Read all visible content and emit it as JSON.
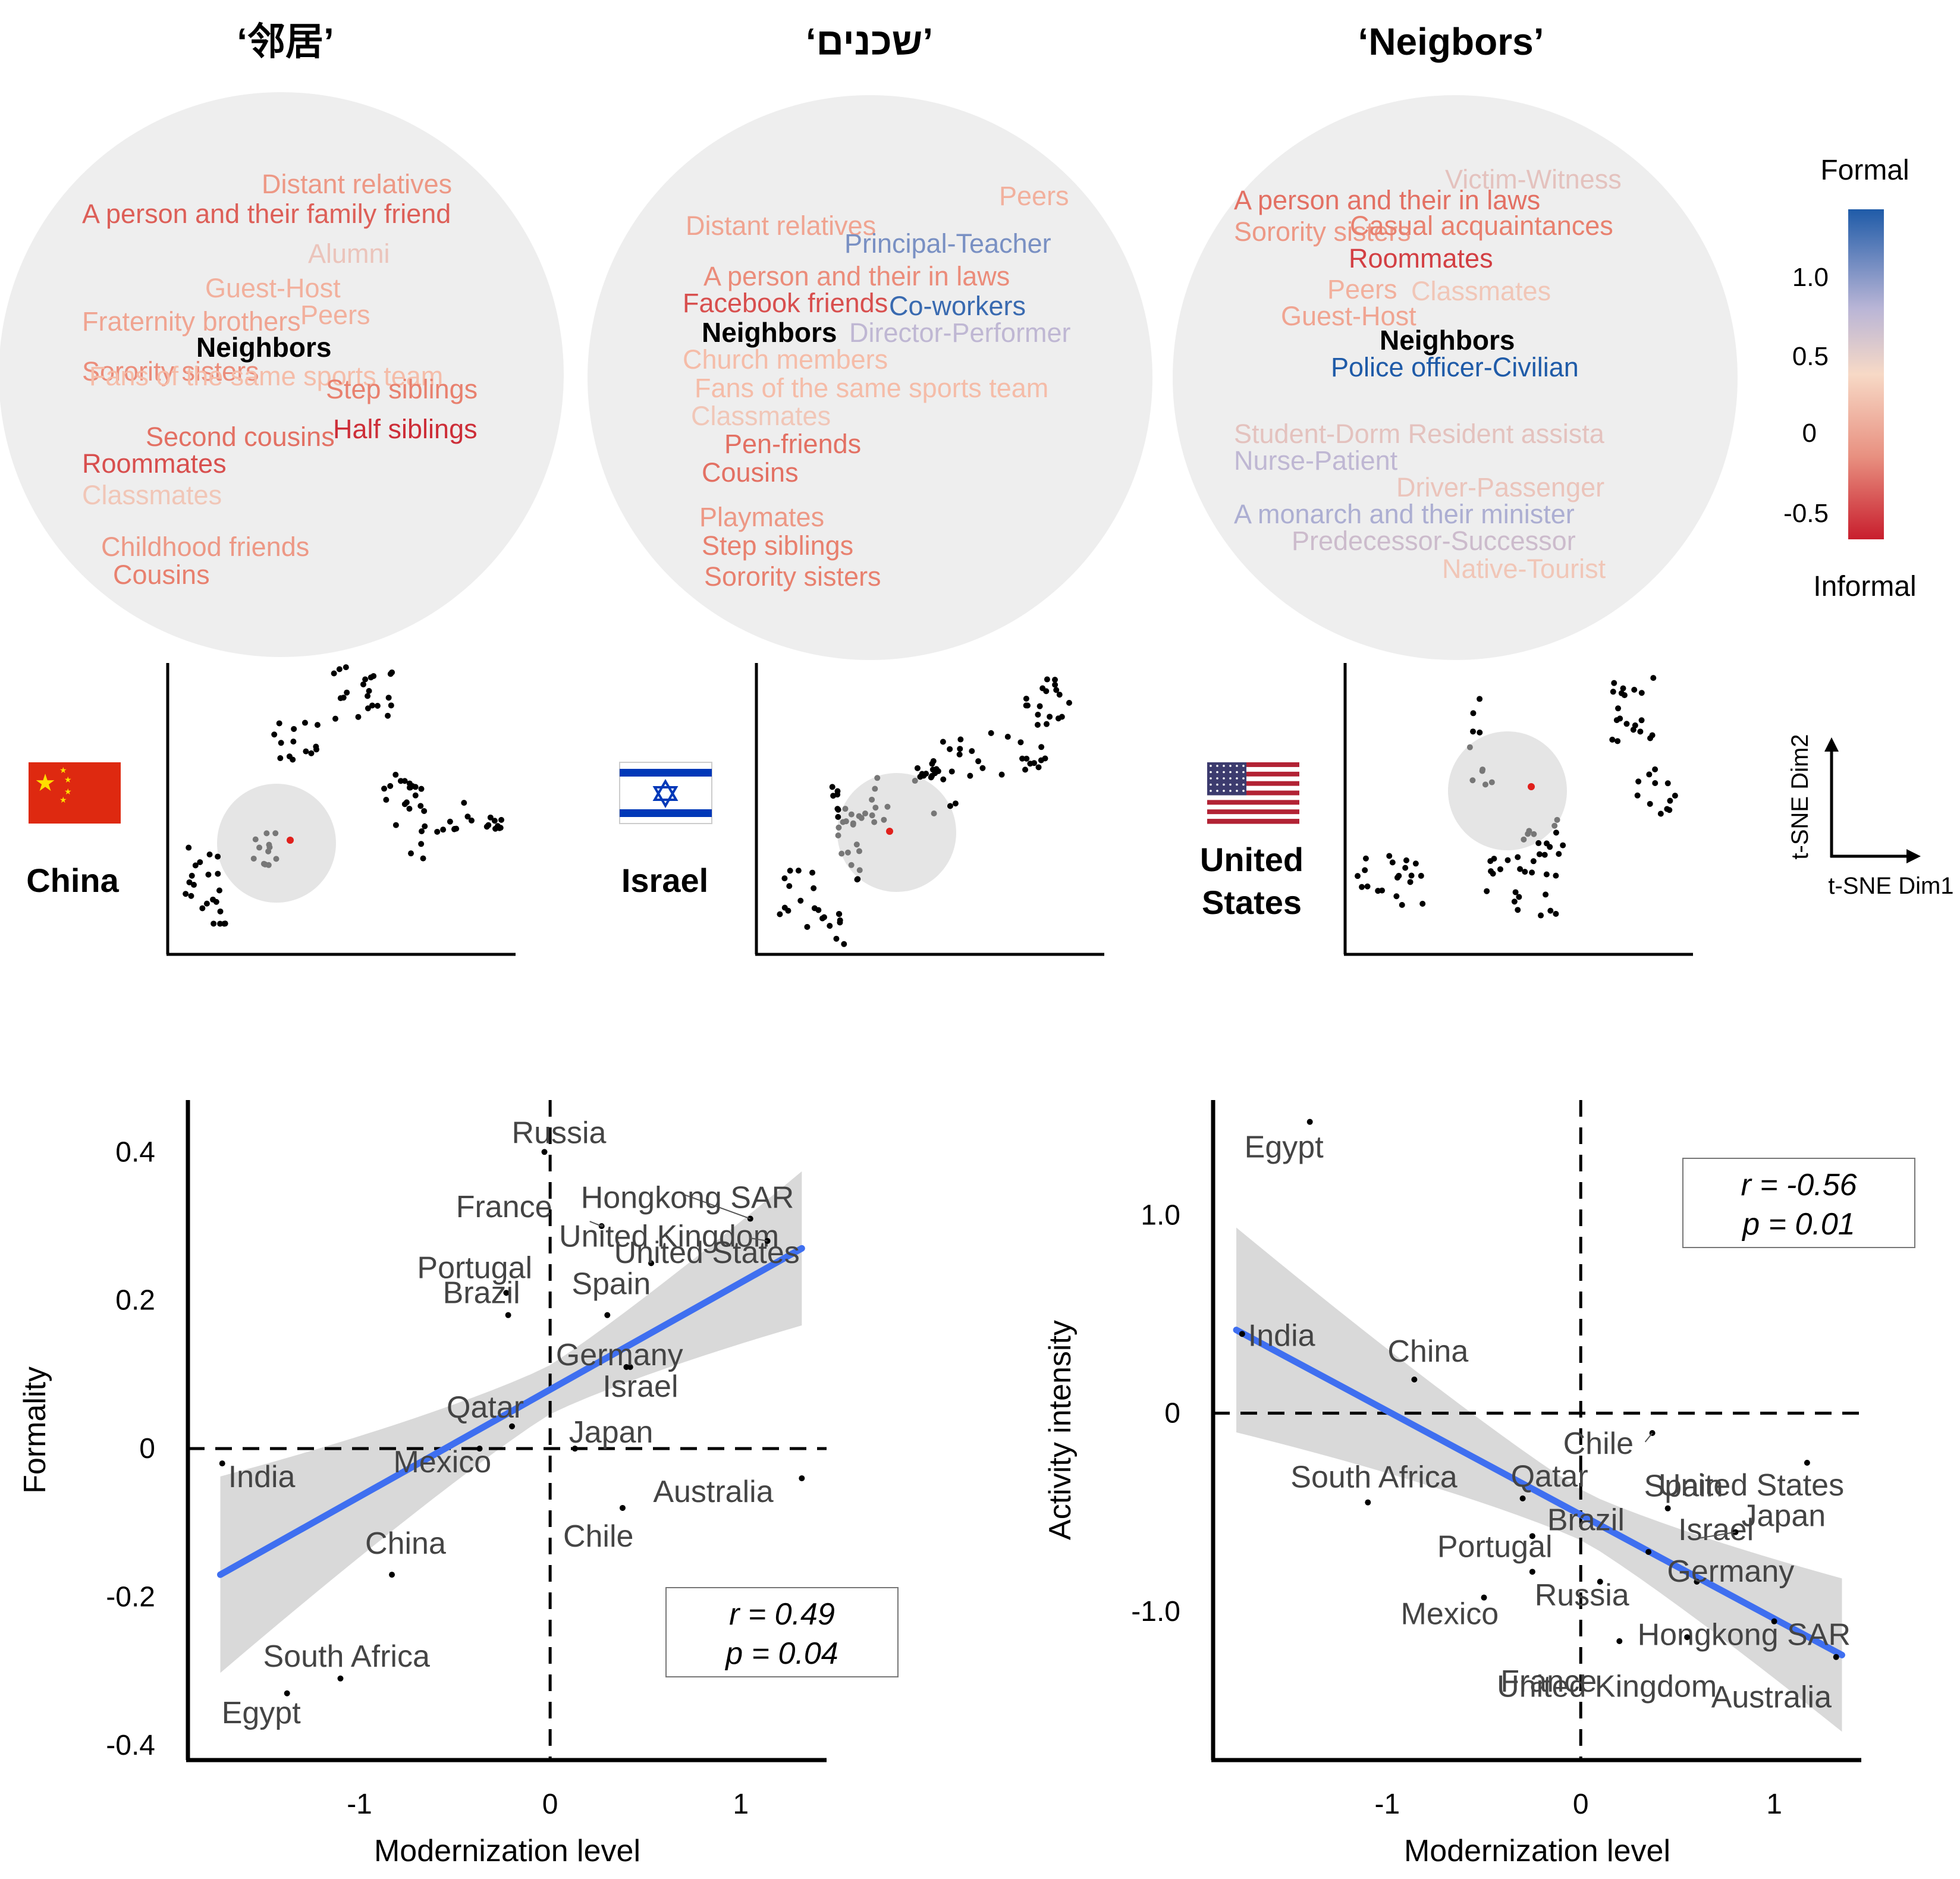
{
  "titles": [
    "‘邻居’",
    "‘שכנים’",
    "‘Neigbors’"
  ],
  "colors": {
    "formal": "#1f5ba8",
    "informal": "#c81e2d",
    "fit_line": "#3f6ff0",
    "band": "#d9d9d9",
    "circle": "#eeeeee"
  },
  "clouds": [
    {
      "center": "Neighbors",
      "items": [
        {
          "text": "Distant relatives",
          "formality": -0.2
        },
        {
          "text": "A person and their family friend",
          "formality": -0.4
        },
        {
          "text": "Alumni",
          "formality": 0.1
        },
        {
          "text": "Guest-Host",
          "formality": -0.1
        },
        {
          "text": "Fraternity brothers",
          "formality": -0.15
        },
        {
          "text": "Peers",
          "formality": -0.1
        },
        {
          "text": "Sorority sisters",
          "formality": -0.25
        },
        {
          "text": "Fans of the same sports team",
          "formality": -0.05
        },
        {
          "text": "Step siblings",
          "formality": -0.3
        },
        {
          "text": "Second cousins",
          "formality": -0.35
        },
        {
          "text": "Half siblings",
          "formality": -0.55
        },
        {
          "text": "Roommates",
          "formality": -0.45
        },
        {
          "text": "Classmates",
          "formality": 0.05
        },
        {
          "text": "Childhood friends",
          "formality": -0.2
        },
        {
          "text": "Cousins",
          "formality": -0.3
        }
      ]
    },
    {
      "center": "Neighbors",
      "items": [
        {
          "text": "Peers",
          "formality": -0.1
        },
        {
          "text": "Distant relatives",
          "formality": -0.15
        },
        {
          "text": "Principal-Teacher",
          "formality": 0.75
        },
        {
          "text": "A person and their in laws",
          "formality": -0.25
        },
        {
          "text": "Facebook friends",
          "formality": -0.45
        },
        {
          "text": "Co-workers",
          "formality": 1.0
        },
        {
          "text": "Director-Performer",
          "formality": 0.45
        },
        {
          "text": "Church members",
          "formality": -0.05
        },
        {
          "text": "Fans of the same sports team",
          "formality": -0.05
        },
        {
          "text": "Classmates",
          "formality": 0.05
        },
        {
          "text": "Pen-friends",
          "formality": -0.35
        },
        {
          "text": "Cousins",
          "formality": -0.35
        },
        {
          "text": "Playmates",
          "formality": -0.2
        },
        {
          "text": "Step siblings",
          "formality": -0.3
        },
        {
          "text": "Sorority sisters",
          "formality": -0.3
        }
      ]
    },
    {
      "center": "Neighbors",
      "items": [
        {
          "text": "Victim-Witness",
          "formality": 0.15
        },
        {
          "text": "A person and their in laws",
          "formality": -0.35
        },
        {
          "text": "Sorority sisters",
          "formality": -0.2
        },
        {
          "text": "Casual acquaintances",
          "formality": -0.3
        },
        {
          "text": "Roommates",
          "formality": -0.5
        },
        {
          "text": "Peers",
          "formality": -0.1
        },
        {
          "text": "Classmates",
          "formality": 0.05
        },
        {
          "text": "Guest-Host",
          "formality": -0.15
        },
        {
          "text": "Police officer-Civilian",
          "formality": 1.1
        },
        {
          "text": "Student-Dorm Resident assista",
          "formality": 0.15
        },
        {
          "text": "Nurse-Patient",
          "formality": 0.45
        },
        {
          "text": "Driver-Passenger",
          "formality": 0.1
        },
        {
          "text": "A monarch and their minister",
          "formality": 0.55
        },
        {
          "text": "Predecessor-Successor",
          "formality": 0.35
        },
        {
          "text": "Native-Tourist",
          "formality": 0.05
        }
      ]
    }
  ],
  "colorbar": {
    "top_label": "Formal",
    "bottom_label": "Informal",
    "ticks": [
      "1.0",
      "0.5",
      "0",
      "-0.5"
    ]
  },
  "tsne_axes": {
    "xlabel": "t-SNE Dim1",
    "ylabel": "t-SNE Dim2"
  },
  "countries": [
    {
      "name": "China",
      "flag": "china"
    },
    {
      "name": "Israel",
      "flag": "israel"
    },
    {
      "name_lines": [
        "United",
        "States"
      ],
      "flag": "usa"
    }
  ],
  "chart_data": [
    {
      "type": "scatter",
      "xlabel": "Modernization level",
      "ylabel": "Formality",
      "xlim": [
        -1.9,
        1.45
      ],
      "ylim": [
        -0.42,
        0.47
      ],
      "xticks": [
        "-1",
        "0",
        "1"
      ],
      "yticks": [
        "0.4",
        "0.2",
        "0",
        "-0.2",
        "-0.4"
      ],
      "r_label": "r  = 0.49",
      "p_label": "p = 0.04",
      "fit": {
        "x": [
          -1.73,
          1.32
        ],
        "y": [
          -0.17,
          0.27
        ]
      },
      "points": [
        {
          "name": "Russia",
          "x": -0.03,
          "y": 0.4
        },
        {
          "name": "France",
          "x": 0.27,
          "y": 0.3
        },
        {
          "name": "Hongkong SAR",
          "x": 1.05,
          "y": 0.31
        },
        {
          "name": "United Kingdom",
          "x": 0.53,
          "y": 0.25
        },
        {
          "name": "Portugal",
          "x": -0.23,
          "y": 0.21
        },
        {
          "name": "United States",
          "x": 1.14,
          "y": 0.28
        },
        {
          "name": "Spain",
          "x": 0.3,
          "y": 0.18
        },
        {
          "name": "Brazil",
          "x": -0.22,
          "y": 0.18
        },
        {
          "name": "Germany",
          "x": 0.42,
          "y": 0.11
        },
        {
          "name": "Israel",
          "x": 0.4,
          "y": 0.11
        },
        {
          "name": "Qatar",
          "x": -0.2,
          "y": 0.03
        },
        {
          "name": "Japan",
          "x": 0.13,
          "y": 0.0
        },
        {
          "name": "India",
          "x": -1.72,
          "y": -0.02
        },
        {
          "name": "Mexico",
          "x": -0.37,
          "y": 0.0
        },
        {
          "name": "Australia",
          "x": 1.32,
          "y": -0.04
        },
        {
          "name": "Chile",
          "x": 0.38,
          "y": -0.08
        },
        {
          "name": "China",
          "x": -0.83,
          "y": -0.17
        },
        {
          "name": "South Africa",
          "x": -1.1,
          "y": -0.31
        },
        {
          "name": "Egypt",
          "x": -1.38,
          "y": -0.33
        }
      ]
    },
    {
      "type": "scatter",
      "xlabel": "Modernization level",
      "ylabel": "Activity intensity",
      "xlim": [
        -1.9,
        1.45
      ],
      "ylim": [
        -1.75,
        1.58
      ],
      "xticks": [
        "-1",
        "0",
        "1"
      ],
      "yticks": [
        "1.0",
        "0",
        "-1.0"
      ],
      "r_label": "r = -0.56",
      "p_label": "p = 0.01",
      "fit": {
        "x": [
          -1.78,
          1.35
        ],
        "y": [
          0.42,
          -1.22
        ]
      },
      "points": [
        {
          "name": "Egypt",
          "x": -1.4,
          "y": 1.47
        },
        {
          "name": "India",
          "x": -1.75,
          "y": 0.4
        },
        {
          "name": "China",
          "x": -0.86,
          "y": 0.17
        },
        {
          "name": "Chile",
          "x": 0.37,
          "y": -0.1
        },
        {
          "name": "United States",
          "x": 1.17,
          "y": -0.25
        },
        {
          "name": "South Africa",
          "x": -1.1,
          "y": -0.45
        },
        {
          "name": "Qatar",
          "x": -0.3,
          "y": -0.43
        },
        {
          "name": "Spain",
          "x": 0.45,
          "y": -0.48
        },
        {
          "name": "Brazil",
          "x": -0.25,
          "y": -0.62
        },
        {
          "name": "Israel",
          "x": 0.35,
          "y": -0.7
        },
        {
          "name": "Japan",
          "x": 0.8,
          "y": -0.6
        },
        {
          "name": "Portugal",
          "x": -0.25,
          "y": -0.8
        },
        {
          "name": "Germany",
          "x": 0.6,
          "y": -0.85
        },
        {
          "name": "Mexico",
          "x": -0.5,
          "y": -0.93
        },
        {
          "name": "Russia",
          "x": 0.1,
          "y": -0.85
        },
        {
          "name": "Hongkong SAR",
          "x": 1.0,
          "y": -1.05
        },
        {
          "name": "France",
          "x": 0.2,
          "y": -1.15
        },
        {
          "name": "Australia",
          "x": 1.32,
          "y": -1.23
        },
        {
          "name": "United Kingdom",
          "x": 0.55,
          "y": -1.13
        }
      ]
    }
  ]
}
